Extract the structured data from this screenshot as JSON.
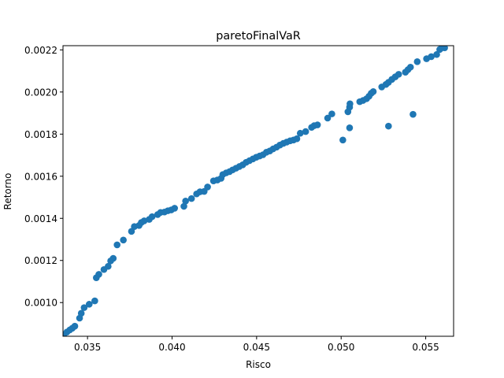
{
  "chart_data": {
    "type": "scatter",
    "title": "paretoFinalVaR",
    "xlabel": "Risco",
    "ylabel": "Retorno",
    "xlim": [
      0.03355,
      0.05665
    ],
    "ylim": [
      0.00084,
      0.00222
    ],
    "xticks": [
      0.035,
      0.04,
      0.045,
      0.05,
      0.055
    ],
    "xtick_labels": [
      "0.035",
      "0.040",
      "0.045",
      "0.050",
      "0.055"
    ],
    "yticks": [
      0.001,
      0.0012,
      0.0014,
      0.0016,
      0.0018,
      0.002,
      0.0022
    ],
    "ytick_labels": [
      "0.0010",
      "0.0012",
      "0.0014",
      "0.0016",
      "0.0018",
      "0.0020",
      "0.0022"
    ],
    "grid": false,
    "legend": "none",
    "marker_color": "#1f77b4",
    "series": [
      {
        "points": [
          [
            0.0336,
            0.000848
          ],
          [
            0.03378,
            0.00086
          ],
          [
            0.03395,
            0.00087
          ],
          [
            0.0341,
            0.000878
          ],
          [
            0.03425,
            0.000888
          ],
          [
            0.03453,
            0.000926
          ],
          [
            0.03463,
            0.000949
          ],
          [
            0.0348,
            0.000976
          ],
          [
            0.0351,
            0.000992
          ],
          [
            0.03543,
            0.001008
          ],
          [
            0.03552,
            0.001118
          ],
          [
            0.03567,
            0.001134
          ],
          [
            0.03597,
            0.001157
          ],
          [
            0.03622,
            0.001172
          ],
          [
            0.03637,
            0.001198
          ],
          [
            0.03652,
            0.00121
          ],
          [
            0.03675,
            0.001274
          ],
          [
            0.03712,
            0.001297
          ],
          [
            0.0376,
            0.001338
          ],
          [
            0.03777,
            0.001361
          ],
          [
            0.03805,
            0.001366
          ],
          [
            0.03818,
            0.00138
          ],
          [
            0.03835,
            0.001388
          ],
          [
            0.03865,
            0.001395
          ],
          [
            0.03882,
            0.001408
          ],
          [
            0.03915,
            0.001418
          ],
          [
            0.03932,
            0.001428
          ],
          [
            0.03955,
            0.00143
          ],
          [
            0.03975,
            0.001436
          ],
          [
            0.03995,
            0.00144
          ],
          [
            0.04015,
            0.001448
          ],
          [
            0.0407,
            0.001457
          ],
          [
            0.0408,
            0.001482
          ],
          [
            0.04115,
            0.001494
          ],
          [
            0.04145,
            0.001516
          ],
          [
            0.04165,
            0.001526
          ],
          [
            0.0419,
            0.001528
          ],
          [
            0.0421,
            0.001549
          ],
          [
            0.04245,
            0.001578
          ],
          [
            0.04268,
            0.001582
          ],
          [
            0.0429,
            0.00159
          ],
          [
            0.043,
            0.001608
          ],
          [
            0.0432,
            0.001616
          ],
          [
            0.0434,
            0.001622
          ],
          [
            0.04358,
            0.00163
          ],
          [
            0.04378,
            0.001638
          ],
          [
            0.04398,
            0.001646
          ],
          [
            0.04418,
            0.001654
          ],
          [
            0.04438,
            0.001666
          ],
          [
            0.04458,
            0.001674
          ],
          [
            0.04478,
            0.001682
          ],
          [
            0.04498,
            0.00169
          ],
          [
            0.04518,
            0.001696
          ],
          [
            0.04538,
            0.001702
          ],
          [
            0.04558,
            0.001714
          ],
          [
            0.04578,
            0.00172
          ],
          [
            0.04598,
            0.00173
          ],
          [
            0.04618,
            0.001738
          ],
          [
            0.04638,
            0.001748
          ],
          [
            0.04658,
            0.001756
          ],
          [
            0.04678,
            0.001762
          ],
          [
            0.04698,
            0.001768
          ],
          [
            0.04718,
            0.001772
          ],
          [
            0.04738,
            0.001778
          ],
          [
            0.04758,
            0.001804
          ],
          [
            0.0479,
            0.001812
          ],
          [
            0.04825,
            0.001832
          ],
          [
            0.0484,
            0.00184
          ],
          [
            0.0486,
            0.001844
          ],
          [
            0.0492,
            0.001876
          ],
          [
            0.04945,
            0.001896
          ],
          [
            0.0501,
            0.001772
          ],
          [
            0.0504,
            0.001906
          ],
          [
            0.0505,
            0.001928
          ],
          [
            0.05052,
            0.001944
          ],
          [
            0.0505,
            0.00183
          ],
          [
            0.0511,
            0.001954
          ],
          [
            0.0513,
            0.00196
          ],
          [
            0.0515,
            0.001968
          ],
          [
            0.05165,
            0.00198
          ],
          [
            0.05178,
            0.001994
          ],
          [
            0.0519,
            0.002002
          ],
          [
            0.0524,
            0.002024
          ],
          [
            0.05265,
            0.002036
          ],
          [
            0.0528,
            0.002046
          ],
          [
            0.053,
            0.00206
          ],
          [
            0.0532,
            0.002072
          ],
          [
            0.0534,
            0.002084
          ],
          [
            0.0538,
            0.002094
          ],
          [
            0.05395,
            0.002106
          ],
          [
            0.0541,
            0.002118
          ],
          [
            0.0545,
            0.002144
          ],
          [
            0.0528,
            0.001838
          ],
          [
            0.05425,
            0.001894
          ],
          [
            0.05505,
            0.002158
          ],
          [
            0.05533,
            0.002168
          ],
          [
            0.05565,
            0.002178
          ],
          [
            0.05583,
            0.002202
          ],
          [
            0.05595,
            0.00221
          ],
          [
            0.05612,
            0.00221
          ]
        ]
      }
    ]
  }
}
